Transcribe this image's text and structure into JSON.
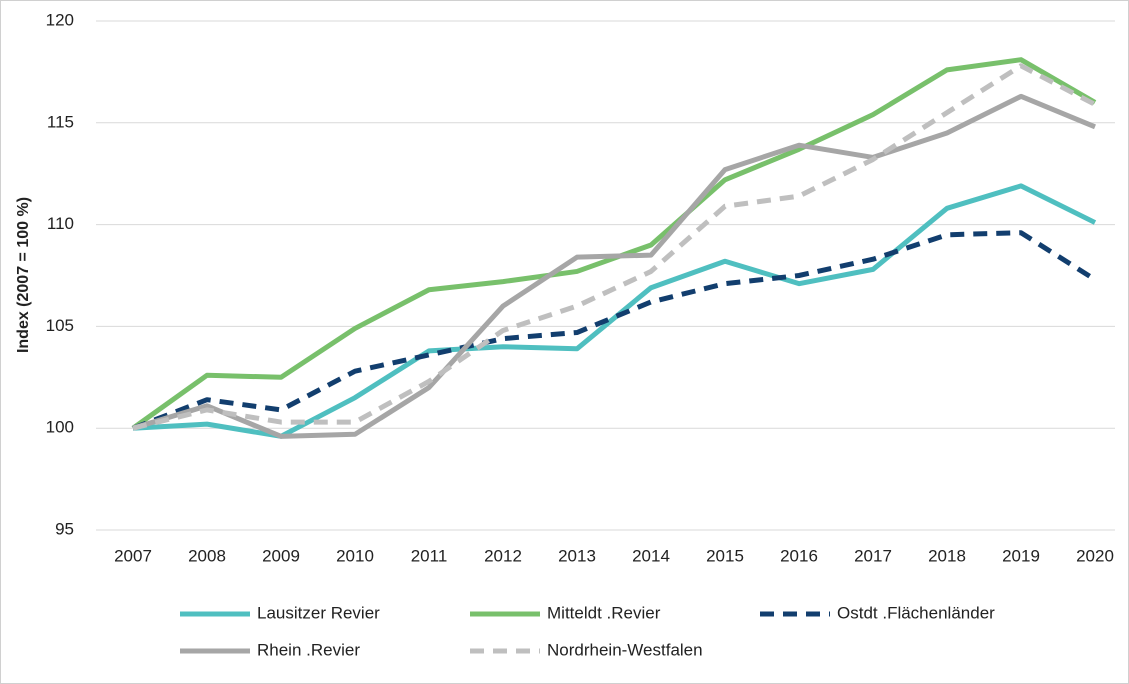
{
  "chart_data": {
    "type": "line",
    "y_label": "Index (2007 = 100 %)",
    "categories": [
      "2007",
      "2008",
      "2009",
      "2010",
      "2011",
      "2012",
      "2013",
      "2014",
      "2015",
      "2016",
      "2017",
      "2018",
      "2019",
      "2020"
    ],
    "ylim": [
      95,
      120
    ],
    "yticks": [
      95,
      100,
      105,
      110,
      115,
      120
    ],
    "grid": true,
    "legend": "bottom",
    "series": [
      {
        "name": "Lausitzer Revier",
        "color": "#4fbfc0",
        "dashed": false,
        "values": [
          100,
          100.2,
          99.6,
          101.5,
          103.8,
          104.0,
          103.9,
          106.9,
          108.2,
          107.1,
          107.8,
          110.8,
          111.9,
          110.1
        ]
      },
      {
        "name": "Mitteldt .Revier",
        "color": "#78c06b",
        "dashed": false,
        "values": [
          100,
          102.6,
          102.5,
          104.9,
          106.8,
          107.2,
          107.7,
          109.0,
          112.2,
          113.7,
          115.4,
          117.6,
          118.1,
          116.0
        ]
      },
      {
        "name": "Ostdt .Flächenländer",
        "color": "#123e6e",
        "dashed": true,
        "values": [
          100,
          101.4,
          100.9,
          102.8,
          103.6,
          104.4,
          104.7,
          106.2,
          107.1,
          107.5,
          108.3,
          109.5,
          109.6,
          107.3
        ]
      },
      {
        "name": "Rhein .Revier",
        "color": "#a6a6a6",
        "dashed": false,
        "values": [
          100,
          101.1,
          99.6,
          99.7,
          102.0,
          106.0,
          108.4,
          108.5,
          112.7,
          113.9,
          113.3,
          114.5,
          116.3,
          114.8
        ]
      },
      {
        "name": "Nordrhein-Westfalen",
        "color": "#bfbfbf",
        "dashed": true,
        "values": [
          100,
          100.9,
          100.3,
          100.3,
          102.3,
          104.8,
          106.0,
          107.7,
          110.9,
          111.4,
          113.2,
          115.5,
          117.8,
          115.9
        ]
      }
    ]
  }
}
